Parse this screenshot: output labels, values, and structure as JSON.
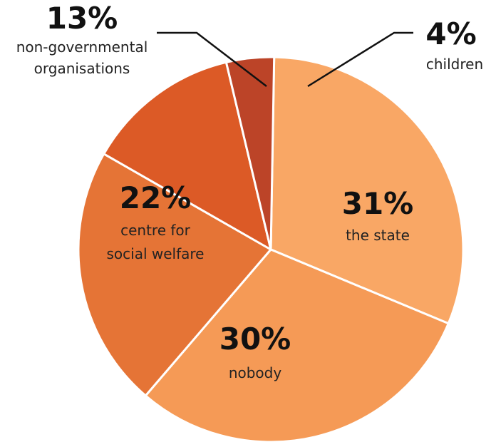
{
  "chart_data": {
    "type": "pie",
    "title": "",
    "slices": [
      {
        "value": 31,
        "percent_label": "31%",
        "label": "the state",
        "color": "#F9A765"
      },
      {
        "value": 30,
        "percent_label": "30%",
        "label": "nobody",
        "color": "#F59A56"
      },
      {
        "value": 22,
        "percent_label": "22%",
        "label_lines": [
          "centre for",
          "social welfare"
        ],
        "color": "#E57436"
      },
      {
        "value": 13,
        "percent_label": "13%",
        "label_lines": [
          "non-governmental",
          "organisations"
        ],
        "color": "#DC5A26"
      },
      {
        "value": 4,
        "percent_label": "4%",
        "label": "children",
        "color": "#BC4428"
      }
    ]
  }
}
